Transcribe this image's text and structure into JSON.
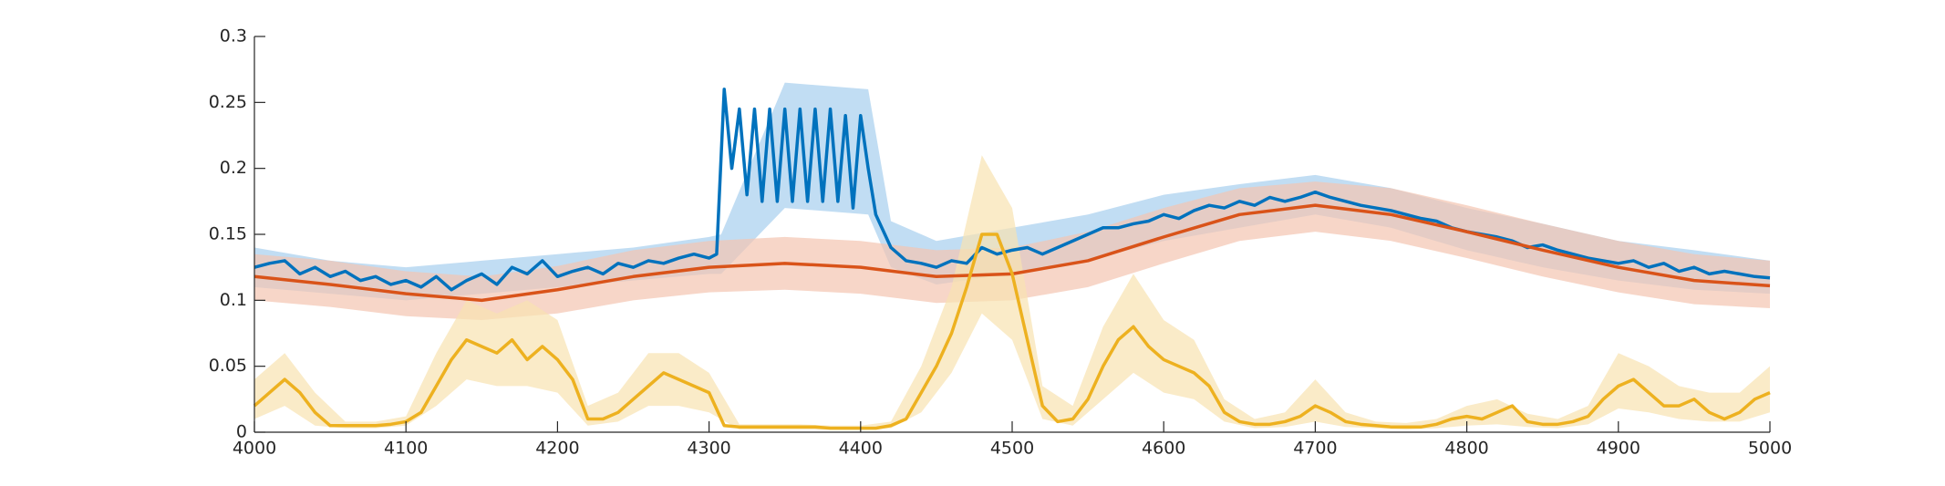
{
  "chart_data": {
    "type": "line",
    "xlim": [
      4000,
      5000
    ],
    "xticks": [
      4000,
      4100,
      4200,
      4300,
      4400,
      4500,
      4600,
      4700,
      4800,
      4900,
      5000
    ],
    "ylim": [
      0,
      0.3
    ],
    "yticks": [
      0,
      0.05,
      0.1,
      0.15,
      0.2,
      0.25,
      0.3
    ],
    "series": [
      {
        "color": "#0072bd",
        "x": [
          4000,
          4010,
          4020,
          4030,
          4040,
          4050,
          4060,
          4070,
          4080,
          4090,
          4100,
          4110,
          4120,
          4130,
          4140,
          4150,
          4160,
          4170,
          4180,
          4190,
          4200,
          4210,
          4220,
          4230,
          4240,
          4250,
          4260,
          4270,
          4280,
          4290,
          4300,
          4305,
          4310,
          4315,
          4320,
          4325,
          4330,
          4335,
          4340,
          4345,
          4350,
          4355,
          4360,
          4365,
          4370,
          4375,
          4380,
          4385,
          4390,
          4395,
          4400,
          4405,
          4410,
          4420,
          4430,
          4440,
          4450,
          4460,
          4470,
          4480,
          4490,
          4500,
          4510,
          4520,
          4530,
          4540,
          4550,
          4560,
          4570,
          4580,
          4590,
          4600,
          4610,
          4620,
          4630,
          4640,
          4650,
          4660,
          4670,
          4680,
          4690,
          4700,
          4710,
          4720,
          4730,
          4740,
          4750,
          4760,
          4770,
          4780,
          4790,
          4800,
          4810,
          4820,
          4830,
          4840,
          4850,
          4860,
          4870,
          4880,
          4890,
          4900,
          4910,
          4920,
          4930,
          4940,
          4950,
          4960,
          4970,
          4980,
          4990,
          5000
        ],
        "values": [
          0.125,
          0.128,
          0.13,
          0.12,
          0.125,
          0.118,
          0.122,
          0.115,
          0.118,
          0.112,
          0.115,
          0.11,
          0.118,
          0.108,
          0.115,
          0.12,
          0.112,
          0.125,
          0.12,
          0.13,
          0.118,
          0.122,
          0.125,
          0.12,
          0.128,
          0.125,
          0.13,
          0.128,
          0.132,
          0.135,
          0.132,
          0.135,
          0.26,
          0.2,
          0.245,
          0.18,
          0.245,
          0.175,
          0.245,
          0.175,
          0.245,
          0.175,
          0.245,
          0.175,
          0.245,
          0.175,
          0.245,
          0.175,
          0.24,
          0.17,
          0.24,
          0.2,
          0.165,
          0.14,
          0.13,
          0.128,
          0.125,
          0.13,
          0.128,
          0.14,
          0.135,
          0.138,
          0.14,
          0.135,
          0.14,
          0.145,
          0.15,
          0.155,
          0.155,
          0.158,
          0.16,
          0.165,
          0.162,
          0.168,
          0.172,
          0.17,
          0.175,
          0.172,
          0.178,
          0.175,
          0.178,
          0.182,
          0.178,
          0.175,
          0.172,
          0.17,
          0.168,
          0.165,
          0.162,
          0.16,
          0.155,
          0.152,
          0.15,
          0.148,
          0.145,
          0.14,
          0.142,
          0.138,
          0.135,
          0.132,
          0.13,
          0.128,
          0.13,
          0.125,
          0.128,
          0.122,
          0.125,
          0.12,
          0.122,
          0.12,
          0.118,
          0.117
        ],
        "band": {
          "color": "#a6cfee",
          "x": [
            4000,
            4050,
            4100,
            4150,
            4200,
            4250,
            4300,
            4308,
            4350,
            4405,
            4420,
            4450,
            4500,
            4550,
            4600,
            4650,
            4700,
            4750,
            4800,
            4850,
            4900,
            4950,
            5000
          ],
          "upper": [
            0.14,
            0.13,
            0.125,
            0.13,
            0.135,
            0.14,
            0.148,
            0.15,
            0.265,
            0.26,
            0.16,
            0.145,
            0.155,
            0.165,
            0.18,
            0.188,
            0.195,
            0.185,
            0.17,
            0.158,
            0.145,
            0.138,
            0.13
          ],
          "lower": [
            0.11,
            0.105,
            0.1,
            0.105,
            0.11,
            0.115,
            0.12,
            0.12,
            0.17,
            0.165,
            0.125,
            0.112,
            0.12,
            0.13,
            0.145,
            0.155,
            0.165,
            0.155,
            0.138,
            0.125,
            0.115,
            0.108,
            0.105
          ]
        }
      },
      {
        "color": "#d95319",
        "x": [
          4000,
          4050,
          4100,
          4150,
          4200,
          4250,
          4300,
          4350,
          4400,
          4450,
          4500,
          4550,
          4600,
          4650,
          4700,
          4750,
          4800,
          4850,
          4900,
          4950,
          5000
        ],
        "values": [
          0.118,
          0.112,
          0.105,
          0.1,
          0.108,
          0.118,
          0.125,
          0.128,
          0.125,
          0.118,
          0.12,
          0.13,
          0.148,
          0.165,
          0.172,
          0.165,
          0.152,
          0.138,
          0.125,
          0.115,
          0.111
        ],
        "band": {
          "color": "#f4c4b0",
          "x": [
            4000,
            4050,
            4100,
            4150,
            4200,
            4250,
            4300,
            4350,
            4400,
            4450,
            4500,
            4550,
            4600,
            4650,
            4700,
            4750,
            4800,
            4850,
            4900,
            4950,
            5000
          ],
          "upper": [
            0.135,
            0.13,
            0.122,
            0.118,
            0.126,
            0.138,
            0.145,
            0.148,
            0.145,
            0.138,
            0.14,
            0.152,
            0.17,
            0.185,
            0.19,
            0.185,
            0.172,
            0.158,
            0.145,
            0.135,
            0.13
          ],
          "lower": [
            0.1,
            0.095,
            0.088,
            0.085,
            0.09,
            0.1,
            0.106,
            0.108,
            0.105,
            0.098,
            0.1,
            0.11,
            0.128,
            0.145,
            0.152,
            0.145,
            0.132,
            0.118,
            0.106,
            0.097,
            0.094
          ]
        }
      },
      {
        "color": "#edb120",
        "x": [
          4000,
          4010,
          4020,
          4030,
          4040,
          4050,
          4060,
          4070,
          4080,
          4090,
          4100,
          4110,
          4120,
          4130,
          4140,
          4150,
          4160,
          4170,
          4180,
          4190,
          4200,
          4210,
          4220,
          4230,
          4240,
          4250,
          4260,
          4270,
          4280,
          4290,
          4300,
          4310,
          4320,
          4330,
          4340,
          4350,
          4360,
          4370,
          4380,
          4390,
          4400,
          4410,
          4420,
          4430,
          4440,
          4450,
          4460,
          4470,
          4480,
          4490,
          4500,
          4510,
          4520,
          4530,
          4540,
          4550,
          4560,
          4570,
          4580,
          4590,
          4600,
          4610,
          4620,
          4630,
          4640,
          4650,
          4660,
          4670,
          4680,
          4690,
          4700,
          4710,
          4720,
          4730,
          4740,
          4750,
          4760,
          4770,
          4780,
          4790,
          4800,
          4810,
          4820,
          4830,
          4840,
          4850,
          4860,
          4870,
          4880,
          4890,
          4900,
          4910,
          4920,
          4930,
          4940,
          4950,
          4960,
          4970,
          4980,
          4990,
          5000
        ],
        "values": [
          0.02,
          0.03,
          0.04,
          0.03,
          0.015,
          0.005,
          0.005,
          0.005,
          0.005,
          0.006,
          0.008,
          0.015,
          0.035,
          0.055,
          0.07,
          0.065,
          0.06,
          0.07,
          0.055,
          0.065,
          0.055,
          0.04,
          0.01,
          0.01,
          0.015,
          0.025,
          0.035,
          0.045,
          0.04,
          0.035,
          0.03,
          0.005,
          0.004,
          0.004,
          0.004,
          0.004,
          0.004,
          0.004,
          0.003,
          0.003,
          0.003,
          0.003,
          0.005,
          0.01,
          0.03,
          0.05,
          0.075,
          0.11,
          0.15,
          0.15,
          0.12,
          0.07,
          0.02,
          0.008,
          0.01,
          0.025,
          0.05,
          0.07,
          0.08,
          0.065,
          0.055,
          0.05,
          0.045,
          0.035,
          0.015,
          0.008,
          0.006,
          0.006,
          0.008,
          0.012,
          0.02,
          0.015,
          0.008,
          0.006,
          0.005,
          0.004,
          0.004,
          0.004,
          0.006,
          0.01,
          0.012,
          0.01,
          0.015,
          0.02,
          0.008,
          0.006,
          0.006,
          0.008,
          0.012,
          0.025,
          0.035,
          0.04,
          0.03,
          0.02,
          0.02,
          0.025,
          0.015,
          0.01,
          0.015,
          0.025,
          0.03
        ],
        "band": {
          "color": "#f8e3b0",
          "x": [
            4000,
            4020,
            4040,
            4060,
            4080,
            4100,
            4120,
            4140,
            4160,
            4180,
            4200,
            4220,
            4240,
            4260,
            4280,
            4300,
            4320,
            4340,
            4360,
            4380,
            4400,
            4420,
            4440,
            4460,
            4480,
            4500,
            4520,
            4540,
            4560,
            4580,
            4600,
            4620,
            4640,
            4660,
            4680,
            4700,
            4720,
            4740,
            4760,
            4780,
            4800,
            4820,
            4840,
            4860,
            4880,
            4900,
            4920,
            4940,
            4960,
            4980,
            5000
          ],
          "upper": [
            0.04,
            0.06,
            0.03,
            0.008,
            0.008,
            0.012,
            0.06,
            0.1,
            0.09,
            0.1,
            0.085,
            0.02,
            0.03,
            0.06,
            0.06,
            0.045,
            0.006,
            0.006,
            0.006,
            0.005,
            0.005,
            0.008,
            0.05,
            0.11,
            0.21,
            0.17,
            0.035,
            0.02,
            0.08,
            0.12,
            0.085,
            0.07,
            0.025,
            0.01,
            0.015,
            0.04,
            0.015,
            0.008,
            0.007,
            0.01,
            0.02,
            0.025,
            0.014,
            0.01,
            0.02,
            0.06,
            0.05,
            0.035,
            0.03,
            0.03,
            0.05
          ],
          "lower": [
            0.01,
            0.02,
            0.005,
            0.003,
            0.003,
            0.005,
            0.02,
            0.04,
            0.035,
            0.035,
            0.03,
            0.005,
            0.008,
            0.02,
            0.02,
            0.015,
            0.002,
            0.002,
            0.002,
            0.002,
            0.002,
            0.003,
            0.015,
            0.045,
            0.09,
            0.07,
            0.01,
            0.005,
            0.025,
            0.045,
            0.03,
            0.025,
            0.008,
            0.003,
            0.004,
            0.008,
            0.004,
            0.003,
            0.002,
            0.003,
            0.005,
            0.006,
            0.004,
            0.003,
            0.006,
            0.018,
            0.015,
            0.01,
            0.008,
            0.008,
            0.015
          ]
        }
      }
    ]
  }
}
